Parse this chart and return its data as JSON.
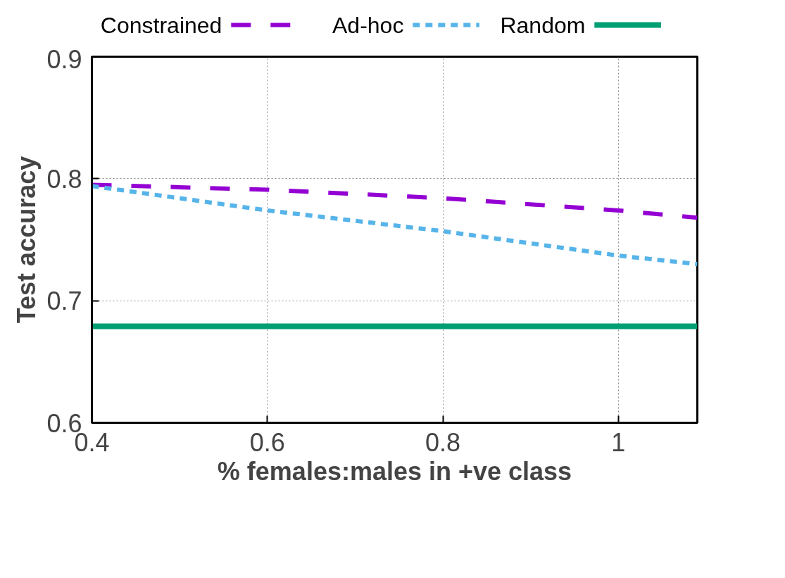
{
  "chart_data": {
    "type": "line",
    "xlabel": "% females:males in +ve class",
    "ylabel": "Test accuracy",
    "x": [
      0.4,
      0.6,
      0.8,
      1.0,
      1.09
    ],
    "series": [
      {
        "name": "Constrained",
        "color": "#9400d3",
        "line_style": "dashed",
        "values": [
          0.795,
          0.791,
          0.784,
          0.774,
          0.768
        ]
      },
      {
        "name": "Ad-hoc",
        "color": "#56b4e9",
        "line_style": "dotted",
        "values": [
          0.794,
          0.774,
          0.757,
          0.737,
          0.73
        ]
      },
      {
        "name": "Random",
        "color": "#009e73",
        "line_style": "solid",
        "values": [
          0.679,
          0.679,
          0.679,
          0.679,
          0.679
        ]
      }
    ],
    "xlim": [
      0.4,
      1.09
    ],
    "ylim": [
      0.6,
      0.9
    ],
    "xticks": [
      0.4,
      0.6,
      0.8,
      {
        "value": 1.0,
        "label": "1"
      }
    ],
    "yticks": [
      0.6,
      0.7,
      0.8,
      0.9
    ],
    "grid": true,
    "legend": "top",
    "marker": "none"
  }
}
